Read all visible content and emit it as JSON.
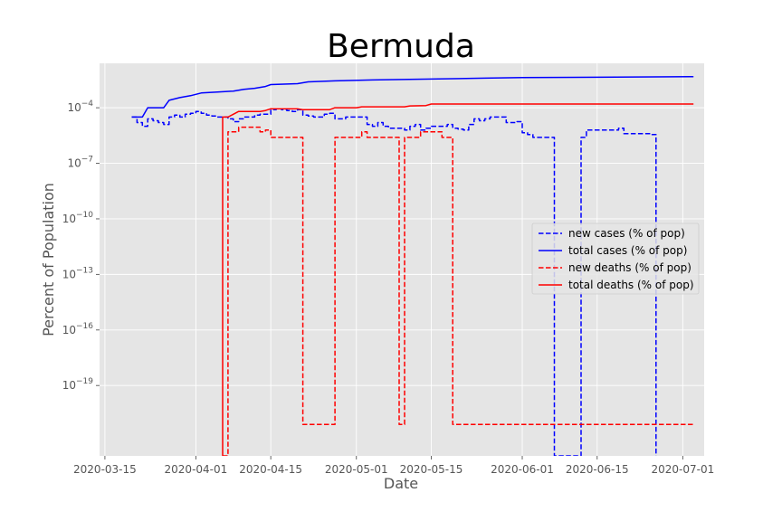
{
  "chart_data": {
    "type": "line",
    "title": "Bermuda",
    "xlabel": "Date",
    "ylabel": "Percent of Population",
    "x_ticks": [
      "2020-03-15",
      "2020-04-01",
      "2020-04-15",
      "2020-05-01",
      "2020-05-15",
      "2020-06-01",
      "2020-06-15",
      "2020-07-01"
    ],
    "y_scale": "log",
    "y_ticks": [
      {
        "exp": -4,
        "label": "10",
        "sup": "−4"
      },
      {
        "exp": -7,
        "label": "10",
        "sup": "−7"
      },
      {
        "exp": -10,
        "label": "10",
        "sup": "−10"
      },
      {
        "exp": -13,
        "label": "10",
        "sup": "−13"
      },
      {
        "exp": -16,
        "label": "10",
        "sup": "−16"
      },
      {
        "exp": -19,
        "label": "10",
        "sup": "−19"
      }
    ],
    "xlim": [
      "2020-03-14",
      "2020-07-05"
    ],
    "ylim_log10": [
      -22.8,
      -1.6
    ],
    "grid": true,
    "legend_position": "center-right",
    "series": [
      {
        "name": "new cases (% of pop)",
        "color": "#0000ff",
        "style": "dashed",
        "step": true,
        "points": [
          [
            "2020-03-20",
            -4.5
          ],
          [
            "2020-03-21",
            -4.8
          ],
          [
            "2020-03-22",
            -5.0
          ],
          [
            "2020-03-23",
            -4.6
          ],
          [
            "2020-03-24",
            -4.7
          ],
          [
            "2020-03-25",
            -4.8
          ],
          [
            "2020-03-26",
            -4.9
          ],
          [
            "2020-03-27",
            -4.5
          ],
          [
            "2020-03-28",
            -4.4
          ],
          [
            "2020-03-29",
            -4.5
          ],
          [
            "2020-03-30",
            -4.35
          ],
          [
            "2020-03-31",
            -4.3
          ],
          [
            "2020-04-01",
            -4.2
          ],
          [
            "2020-04-02",
            -4.3
          ],
          [
            "2020-04-03",
            -4.4
          ],
          [
            "2020-04-04",
            -4.45
          ],
          [
            "2020-04-05",
            -4.5
          ],
          [
            "2020-04-06",
            -4.5
          ],
          [
            "2020-04-07",
            -4.6
          ],
          [
            "2020-04-08",
            -4.75
          ],
          [
            "2020-04-09",
            -4.6
          ],
          [
            "2020-04-10",
            -4.5
          ],
          [
            "2020-04-11",
            -4.5
          ],
          [
            "2020-04-12",
            -4.4
          ],
          [
            "2020-04-13",
            -4.35
          ],
          [
            "2020-04-14",
            -4.35
          ],
          [
            "2020-04-15",
            -4.1
          ],
          [
            "2020-04-16",
            -4.05
          ],
          [
            "2020-04-17",
            -4.1
          ],
          [
            "2020-04-18",
            -4.15
          ],
          [
            "2020-04-19",
            -4.2
          ],
          [
            "2020-04-20",
            -4.1
          ],
          [
            "2020-04-21",
            -4.4
          ],
          [
            "2020-04-22",
            -4.45
          ],
          [
            "2020-04-23",
            -4.5
          ],
          [
            "2020-04-24",
            -4.5
          ],
          [
            "2020-04-25",
            -4.35
          ],
          [
            "2020-04-26",
            -4.3
          ],
          [
            "2020-04-27",
            -4.6
          ],
          [
            "2020-04-28",
            -4.6
          ],
          [
            "2020-04-29",
            -4.5
          ],
          [
            "2020-04-30",
            -4.5
          ],
          [
            "2020-05-01",
            -4.5
          ],
          [
            "2020-05-02",
            -4.5
          ],
          [
            "2020-05-03",
            -4.9
          ],
          [
            "2020-05-04",
            -5.0
          ],
          [
            "2020-05-05",
            -4.8
          ],
          [
            "2020-05-06",
            -5.0
          ],
          [
            "2020-05-07",
            -5.1
          ],
          [
            "2020-05-08",
            -5.1
          ],
          [
            "2020-05-09",
            -5.1
          ],
          [
            "2020-05-10",
            -5.2
          ],
          [
            "2020-05-11",
            -5.0
          ],
          [
            "2020-05-12",
            -4.9
          ],
          [
            "2020-05-13",
            -5.2
          ],
          [
            "2020-05-14",
            -5.1
          ],
          [
            "2020-05-15",
            -5.0
          ],
          [
            "2020-05-16",
            -5.0
          ],
          [
            "2020-05-17",
            -5.0
          ],
          [
            "2020-05-18",
            -4.9
          ],
          [
            "2020-05-19",
            -5.1
          ],
          [
            "2020-05-20",
            -5.15
          ],
          [
            "2020-05-21",
            -5.2
          ],
          [
            "2020-05-22",
            -4.9
          ],
          [
            "2020-05-23",
            -4.6
          ],
          [
            "2020-05-24",
            -4.7
          ],
          [
            "2020-05-25",
            -4.6
          ],
          [
            "2020-05-26",
            -4.5
          ],
          [
            "2020-05-27",
            -4.5
          ],
          [
            "2020-05-28",
            -4.5
          ],
          [
            "2020-05-29",
            -4.8
          ],
          [
            "2020-05-30",
            -4.8
          ],
          [
            "2020-05-31",
            -4.75
          ],
          [
            "2020-06-01",
            -5.35
          ],
          [
            "2020-06-02",
            -5.45
          ],
          [
            "2020-06-03",
            -5.6
          ],
          [
            "2020-06-04",
            -5.6
          ],
          [
            "2020-06-05",
            -5.6
          ],
          [
            "2020-06-06",
            -5.6
          ],
          [
            "2020-06-07",
            -22.8
          ],
          [
            "2020-06-12",
            -5.6
          ],
          [
            "2020-06-13",
            -5.2
          ],
          [
            "2020-06-14",
            -5.2
          ],
          [
            "2020-06-15",
            -5.2
          ],
          [
            "2020-06-16",
            -5.2
          ],
          [
            "2020-06-17",
            -5.2
          ],
          [
            "2020-06-18",
            -5.2
          ],
          [
            "2020-06-19",
            -5.1
          ],
          [
            "2020-06-20",
            -5.4
          ],
          [
            "2020-06-21",
            -5.4
          ],
          [
            "2020-06-22",
            -5.4
          ],
          [
            "2020-06-23",
            -5.4
          ],
          [
            "2020-06-24",
            -5.4
          ],
          [
            "2020-06-25",
            -5.45
          ],
          [
            "2020-06-26",
            -22.8
          ]
        ]
      },
      {
        "name": "total cases (% of pop)",
        "color": "#0000ff",
        "style": "solid",
        "step": false,
        "points": [
          [
            "2020-03-20",
            -4.5
          ],
          [
            "2020-03-22",
            -4.5
          ],
          [
            "2020-03-23",
            -4.0
          ],
          [
            "2020-03-26",
            -4.0
          ],
          [
            "2020-03-27",
            -3.6
          ],
          [
            "2020-03-29",
            -3.45
          ],
          [
            "2020-03-31",
            -3.35
          ],
          [
            "2020-04-02",
            -3.2
          ],
          [
            "2020-04-05",
            -3.15
          ],
          [
            "2020-04-08",
            -3.1
          ],
          [
            "2020-04-10",
            -3.0
          ],
          [
            "2020-04-12",
            -2.95
          ],
          [
            "2020-04-14",
            -2.85
          ],
          [
            "2020-04-15",
            -2.75
          ],
          [
            "2020-04-20",
            -2.7
          ],
          [
            "2020-04-22",
            -2.6
          ],
          [
            "2020-04-27",
            -2.55
          ],
          [
            "2020-05-04",
            -2.5
          ],
          [
            "2020-05-15",
            -2.45
          ],
          [
            "2020-05-25",
            -2.4
          ],
          [
            "2020-06-01",
            -2.37
          ],
          [
            "2020-06-15",
            -2.35
          ],
          [
            "2020-07-03",
            -2.32
          ]
        ]
      },
      {
        "name": "new deaths (% of pop)",
        "color": "#ff0000",
        "style": "dashed",
        "step": true,
        "points": [
          [
            "2020-04-06",
            -22.8
          ],
          [
            "2020-04-07",
            -5.3
          ],
          [
            "2020-04-08",
            -5.3
          ],
          [
            "2020-04-09",
            -5.05
          ],
          [
            "2020-04-10",
            -5.05
          ],
          [
            "2020-04-11",
            -5.05
          ],
          [
            "2020-04-12",
            -5.05
          ],
          [
            "2020-04-13",
            -5.3
          ],
          [
            "2020-04-14",
            -5.2
          ],
          [
            "2020-04-15",
            -5.6
          ],
          [
            "2020-04-16",
            -5.6
          ],
          [
            "2020-04-17",
            -5.6
          ],
          [
            "2020-04-18",
            -5.6
          ],
          [
            "2020-04-19",
            -5.6
          ],
          [
            "2020-04-21",
            -21.1
          ],
          [
            "2020-04-27",
            -5.6
          ],
          [
            "2020-04-28",
            -5.6
          ],
          [
            "2020-04-29",
            -5.6
          ],
          [
            "2020-04-30",
            -5.6
          ],
          [
            "2020-05-02",
            -5.3
          ],
          [
            "2020-05-03",
            -5.6
          ],
          [
            "2020-05-04",
            -5.6
          ],
          [
            "2020-05-05",
            -5.6
          ],
          [
            "2020-05-06",
            -5.6
          ],
          [
            "2020-05-07",
            -5.6
          ],
          [
            "2020-05-08",
            -5.6
          ],
          [
            "2020-05-09",
            -21.1
          ],
          [
            "2020-05-10",
            -5.6
          ],
          [
            "2020-05-11",
            -5.6
          ],
          [
            "2020-05-12",
            -5.6
          ],
          [
            "2020-05-13",
            -5.3
          ],
          [
            "2020-05-14",
            -5.3
          ],
          [
            "2020-05-15",
            -5.3
          ],
          [
            "2020-05-16",
            -5.3
          ],
          [
            "2020-05-17",
            -5.6
          ],
          [
            "2020-05-18",
            -5.6
          ],
          [
            "2020-05-19",
            -21.1
          ],
          [
            "2020-07-03",
            -21.1
          ]
        ]
      },
      {
        "name": "total deaths (% of pop)",
        "color": "#ff0000",
        "style": "solid",
        "step": false,
        "points": [
          [
            "2020-04-06",
            -22.8
          ],
          [
            "2020-04-06",
            -4.5
          ],
          [
            "2020-04-07",
            -4.5
          ],
          [
            "2020-04-08",
            -4.35
          ],
          [
            "2020-04-09",
            -4.2
          ],
          [
            "2020-04-13",
            -4.2
          ],
          [
            "2020-04-14",
            -4.15
          ],
          [
            "2020-04-15",
            -4.05
          ],
          [
            "2020-04-16",
            -4.05
          ],
          [
            "2020-04-20",
            -4.05
          ],
          [
            "2020-04-21",
            -4.1
          ],
          [
            "2020-04-26",
            -4.1
          ],
          [
            "2020-04-27",
            -4.0
          ],
          [
            "2020-05-01",
            -4.0
          ],
          [
            "2020-05-02",
            -3.95
          ],
          [
            "2020-05-10",
            -3.95
          ],
          [
            "2020-05-11",
            -3.9
          ],
          [
            "2020-05-14",
            -3.88
          ],
          [
            "2020-05-15",
            -3.8
          ],
          [
            "2020-07-03",
            -3.8
          ]
        ]
      }
    ]
  }
}
